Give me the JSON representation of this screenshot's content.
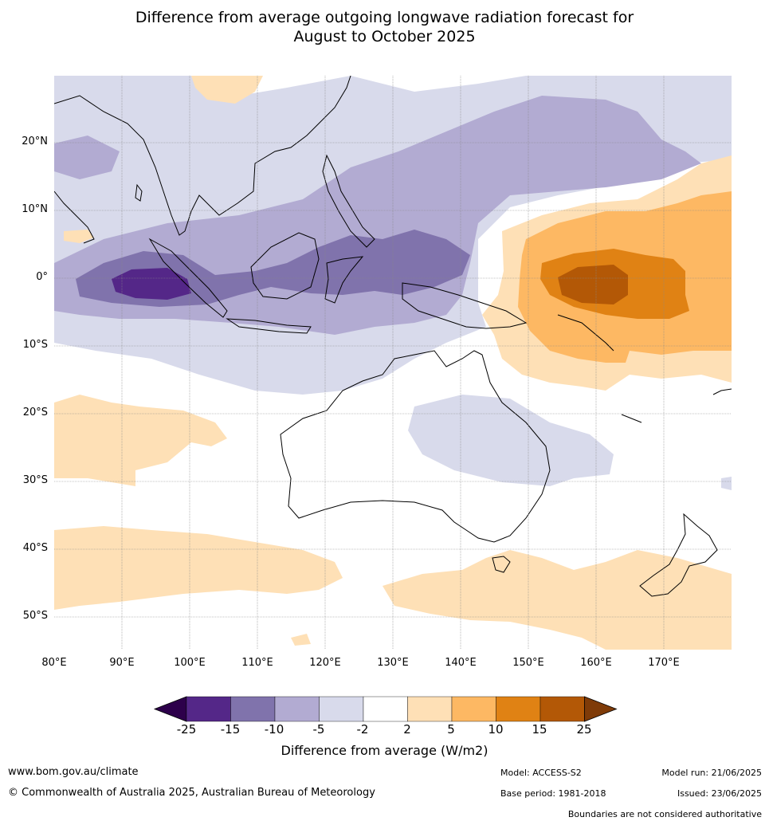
{
  "title": {
    "line1": "Difference from average outgoing longwave radiation forecast for",
    "line2": "August to October 2025"
  },
  "map": {
    "lat_labels": [
      "20°N",
      "10°N",
      "0°",
      "10°S",
      "20°S",
      "30°S",
      "40°S",
      "50°S"
    ],
    "lon_labels": [
      "80°E",
      "90°E",
      "100°E",
      "110°E",
      "120°E",
      "130°E",
      "140°E",
      "150°E",
      "160°E",
      "170°E"
    ],
    "lon_range": [
      80,
      180
    ],
    "lat_range": [
      -55,
      30
    ]
  },
  "colorbar": {
    "ticks": [
      "-25",
      "-15",
      "-10",
      "-5",
      "-2",
      "2",
      "5",
      "10",
      "15",
      "25"
    ],
    "colors": [
      "#2d004b",
      "#542788",
      "#8073ac",
      "#b2abd2",
      "#d8daeb",
      "#ffffff",
      "#fee0b6",
      "#fdb863",
      "#e08214",
      "#b35806",
      "#7f3b08"
    ],
    "label": "Difference from average (W/m2)"
  },
  "footer": {
    "website": "www.bom.gov.au/climate",
    "copyright": "© Commonwealth of Australia 2025, Australian Bureau of Meteorology",
    "model": "Model: ACCESS-S2",
    "base_period": "Base period: 1981-2018",
    "model_run": "Model run: 21/06/2025",
    "issued": "Issued: 23/06/2025",
    "disclaimer": "Boundaries are not considered authoritative"
  }
}
